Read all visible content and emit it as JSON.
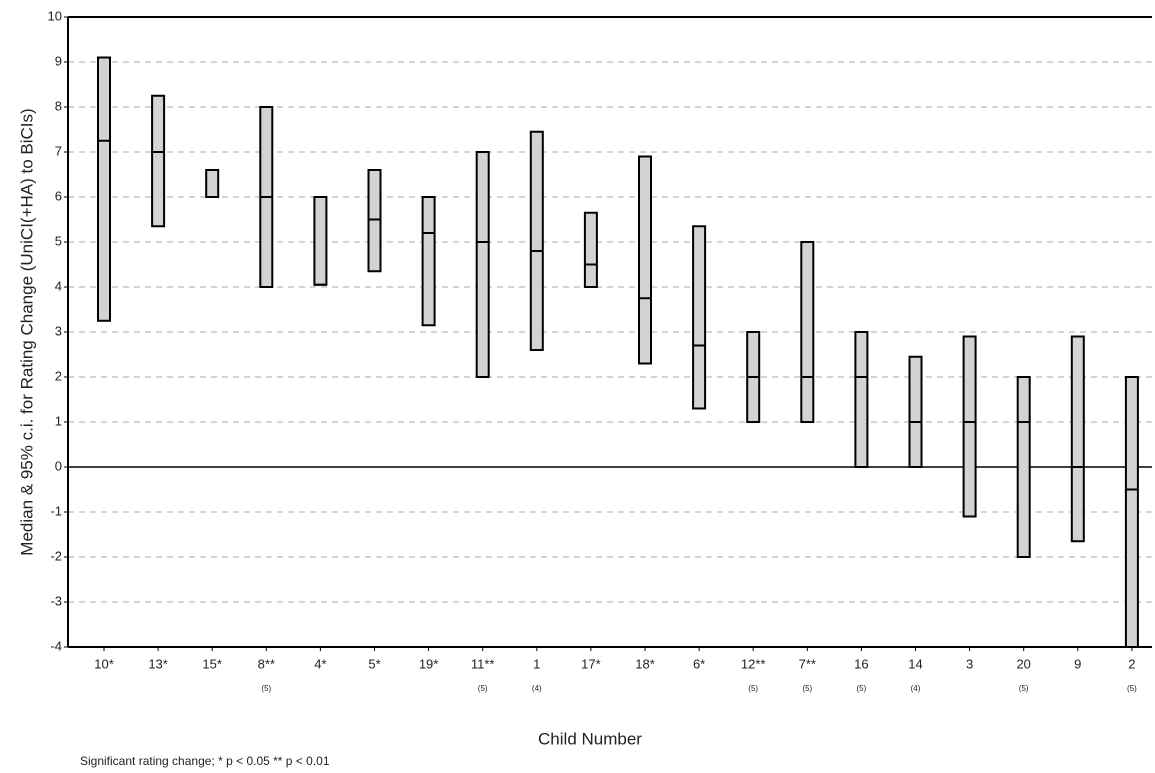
{
  "chart_data": {
    "type": "range",
    "y_label": "Median & 95% c.i. for Rating Change (UniCI(+HA) to BiCIs)",
    "x_label": "Child Number",
    "footnote": "Significant rating change;  * p < 0.05    ** p < 0.01",
    "categories": [
      "10*",
      "13*",
      "15*",
      "8**",
      "4*",
      "5*",
      "19*",
      "11**",
      "1",
      "17*",
      "18*",
      "6*",
      "12**",
      "7**",
      "16",
      "14",
      "3",
      "20",
      "9",
      "2"
    ],
    "sub_labels": [
      null,
      null,
      null,
      "(5)",
      null,
      null,
      null,
      "(5)",
      "(4)",
      null,
      null,
      null,
      "(5)",
      "(5)",
      "(5)",
      "(4)",
      null,
      "(5)",
      null,
      "(5)"
    ],
    "ci_low": [
      3.25,
      5.35,
      6.0,
      4.0,
      4.05,
      4.35,
      3.15,
      2.0,
      2.6,
      4.0,
      2.3,
      1.3,
      1.0,
      1.0,
      0,
      0,
      -1.1,
      -2.0,
      -1.65,
      -4.0
    ],
    "median": [
      7.25,
      7.0,
      6.0,
      6.0,
      4.05,
      5.5,
      5.2,
      5.0,
      4.8,
      4.5,
      3.75,
      2.7,
      2.0,
      2.0,
      2.0,
      1.0,
      1.0,
      1.0,
      0,
      -0.5
    ],
    "ci_high": [
      9.1,
      8.25,
      6.6,
      8.0,
      6.0,
      6.6,
      6.0,
      7.0,
      7.45,
      5.65,
      6.9,
      5.35,
      3.0,
      5.0,
      3.0,
      2.45,
      2.9,
      2.0,
      2.9,
      2.0
    ],
    "color": "#d3d3d3",
    "ylim": [
      -4,
      10
    ],
    "yticks": [
      -4,
      -3,
      -2,
      -1,
      0,
      1,
      2,
      3,
      4,
      5,
      6,
      7,
      8,
      9,
      10
    ],
    "grid": true
  }
}
